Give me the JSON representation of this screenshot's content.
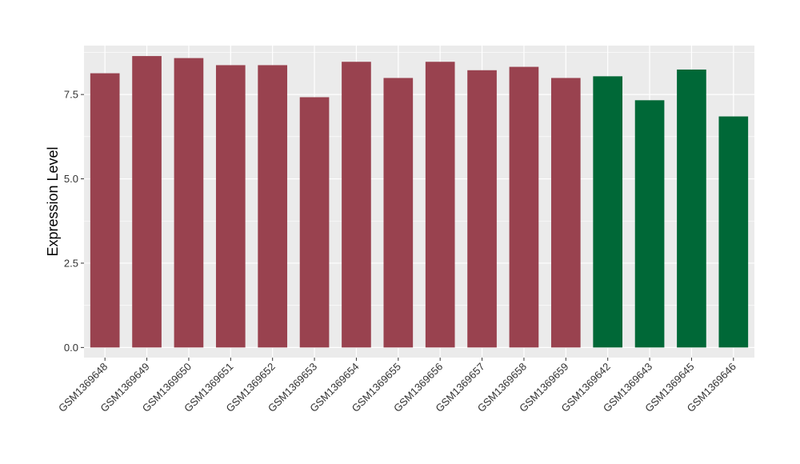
{
  "chart_data": {
    "type": "bar",
    "title": "",
    "xlabel": "",
    "ylabel": "Expression Level",
    "ylim": [
      -0.3,
      8.95
    ],
    "yticks": [
      0.0,
      2.5,
      5.0,
      7.5
    ],
    "ytick_labels": [
      "0.0",
      "2.5",
      "5.0",
      "7.5"
    ],
    "grid": true,
    "legend": "none",
    "categories": [
      "GSM1369648",
      "GSM1369649",
      "GSM1369650",
      "GSM1369651",
      "GSM1369652",
      "GSM1369653",
      "GSM1369654",
      "GSM1369655",
      "GSM1369656",
      "GSM1369657",
      "GSM1369658",
      "GSM1369659",
      "GSM1369642",
      "GSM1369643",
      "GSM1369645",
      "GSM1369646"
    ],
    "values": [
      8.13,
      8.64,
      8.58,
      8.37,
      8.37,
      7.42,
      8.47,
      7.99,
      8.47,
      8.22,
      8.32,
      7.99,
      8.04,
      7.33,
      8.24,
      6.85
    ],
    "colors": [
      "#99424f",
      "#99424f",
      "#99424f",
      "#99424f",
      "#99424f",
      "#99424f",
      "#99424f",
      "#99424f",
      "#99424f",
      "#99424f",
      "#99424f",
      "#99424f",
      "#006837",
      "#006837",
      "#006837",
      "#006837"
    ],
    "panel_background": "#ebebeb",
    "grid_color": "#ffffff"
  }
}
